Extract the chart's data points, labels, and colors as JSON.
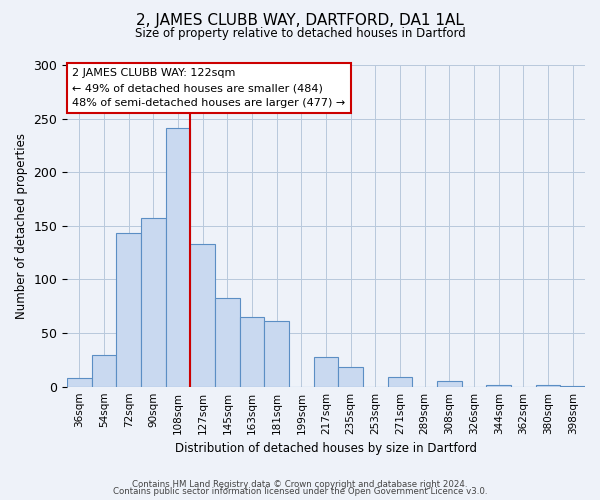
{
  "title": "2, JAMES CLUBB WAY, DARTFORD, DA1 1AL",
  "subtitle": "Size of property relative to detached houses in Dartford",
  "xlabel": "Distribution of detached houses by size in Dartford",
  "ylabel": "Number of detached properties",
  "bar_labels": [
    "36sqm",
    "54sqm",
    "72sqm",
    "90sqm",
    "108sqm",
    "127sqm",
    "145sqm",
    "163sqm",
    "181sqm",
    "199sqm",
    "217sqm",
    "235sqm",
    "253sqm",
    "271sqm",
    "289sqm",
    "308sqm",
    "326sqm",
    "344sqm",
    "362sqm",
    "380sqm",
    "398sqm"
  ],
  "bar_values": [
    8,
    30,
    143,
    157,
    241,
    133,
    83,
    65,
    61,
    0,
    28,
    18,
    0,
    9,
    0,
    5,
    0,
    2,
    0,
    2,
    1
  ],
  "bar_color": "#c9d9f0",
  "bar_edge_color": "#5b8ec4",
  "vline_x": 5,
  "vline_color": "#cc0000",
  "annotation_text": "2 JAMES CLUBB WAY: 122sqm\n← 49% of detached houses are smaller (484)\n48% of semi-detached houses are larger (477) →",
  "annotation_box_color": "#ffffff",
  "annotation_box_edge_color": "#cc0000",
  "ylim": [
    0,
    300
  ],
  "yticks": [
    0,
    50,
    100,
    150,
    200,
    250,
    300
  ],
  "footer1": "Contains HM Land Registry data © Crown copyright and database right 2024.",
  "footer2": "Contains public sector information licensed under the Open Government Licence v3.0.",
  "background_color": "#eef2f9"
}
